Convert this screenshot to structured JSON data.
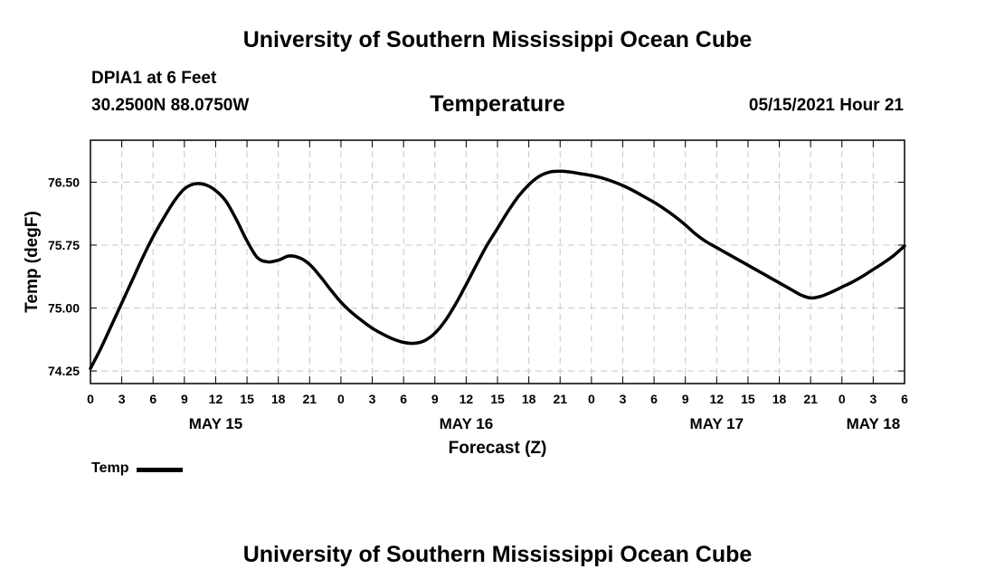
{
  "header": {
    "title_top": "University of Southern Mississippi Ocean Cube",
    "station": "DPIA1 at 6 Feet",
    "coords": "30.2500N  88.0750W",
    "chart_title": "Temperature",
    "datetime": "05/15/2021 Hour 21",
    "title_bottom": "University of Southern Mississippi Ocean Cube"
  },
  "legend": {
    "label": "Temp"
  },
  "chart_data": {
    "type": "line",
    "title": "Temperature",
    "xlabel": "Forecast (Z)",
    "ylabel": "Temp (degF)",
    "x_unit": "hours since MAY 15 00Z",
    "xlim": [
      0,
      78
    ],
    "ylim": [
      74.1,
      77.0
    ],
    "yticks": [
      74.25,
      75.0,
      75.75,
      76.5
    ],
    "ytick_labels": [
      "74.25",
      "75.00",
      "75.75",
      "76.50"
    ],
    "xticks": [
      0,
      3,
      6,
      9,
      12,
      15,
      18,
      21,
      24,
      27,
      30,
      33,
      36,
      39,
      42,
      45,
      48,
      51,
      54,
      57,
      60,
      63,
      66,
      69,
      72,
      75,
      78
    ],
    "xtick_labels": [
      "0",
      "3",
      "6",
      "9",
      "12",
      "15",
      "18",
      "21",
      "0",
      "3",
      "6",
      "9",
      "12",
      "15",
      "18",
      "21",
      "0",
      "3",
      "6",
      "9",
      "12",
      "15",
      "18",
      "21",
      "0",
      "3",
      "6"
    ],
    "date_labels": [
      {
        "x": 12,
        "label": "MAY 15"
      },
      {
        "x": 36,
        "label": "MAY 16"
      },
      {
        "x": 60,
        "label": "MAY 17"
      },
      {
        "x": 75,
        "label": "MAY 18"
      }
    ],
    "grid": true,
    "legend_position": "bottom-left",
    "series": [
      {
        "name": "Temp",
        "color": "#000000",
        "x": [
          0,
          1,
          2,
          3,
          4,
          5,
          6,
          7,
          8,
          9,
          10,
          11,
          12,
          13,
          14,
          15,
          16,
          17,
          18,
          19,
          20,
          21,
          22,
          23,
          24,
          25,
          26,
          27,
          28,
          29,
          30,
          31,
          32,
          33,
          34,
          35,
          36,
          37,
          38,
          39,
          40,
          41,
          42,
          43,
          44,
          45,
          46,
          47,
          48,
          49,
          50,
          51,
          52,
          53,
          54,
          55,
          56,
          57,
          58,
          59,
          60,
          61,
          62,
          63,
          64,
          65,
          66,
          67,
          68,
          69,
          70,
          71,
          72,
          73,
          74,
          75,
          76,
          77,
          78
        ],
        "values": [
          74.28,
          74.52,
          74.79,
          75.06,
          75.33,
          75.6,
          75.85,
          76.07,
          76.27,
          76.42,
          76.48,
          76.47,
          76.4,
          76.27,
          76.05,
          75.8,
          75.6,
          75.55,
          75.57,
          75.62,
          75.6,
          75.52,
          75.38,
          75.22,
          75.07,
          74.95,
          74.85,
          74.76,
          74.69,
          74.63,
          74.59,
          74.58,
          74.61,
          74.7,
          74.85,
          75.05,
          75.28,
          75.52,
          75.75,
          75.95,
          76.15,
          76.33,
          76.47,
          76.57,
          76.62,
          76.63,
          76.62,
          76.6,
          76.58,
          76.55,
          76.51,
          76.46,
          76.4,
          76.33,
          76.26,
          76.18,
          76.09,
          75.99,
          75.88,
          75.79,
          75.72,
          75.65,
          75.58,
          75.51,
          75.44,
          75.37,
          75.3,
          75.23,
          75.16,
          75.12,
          75.14,
          75.19,
          75.25,
          75.31,
          75.38,
          75.46,
          75.54,
          75.63,
          75.74
        ]
      }
    ]
  }
}
